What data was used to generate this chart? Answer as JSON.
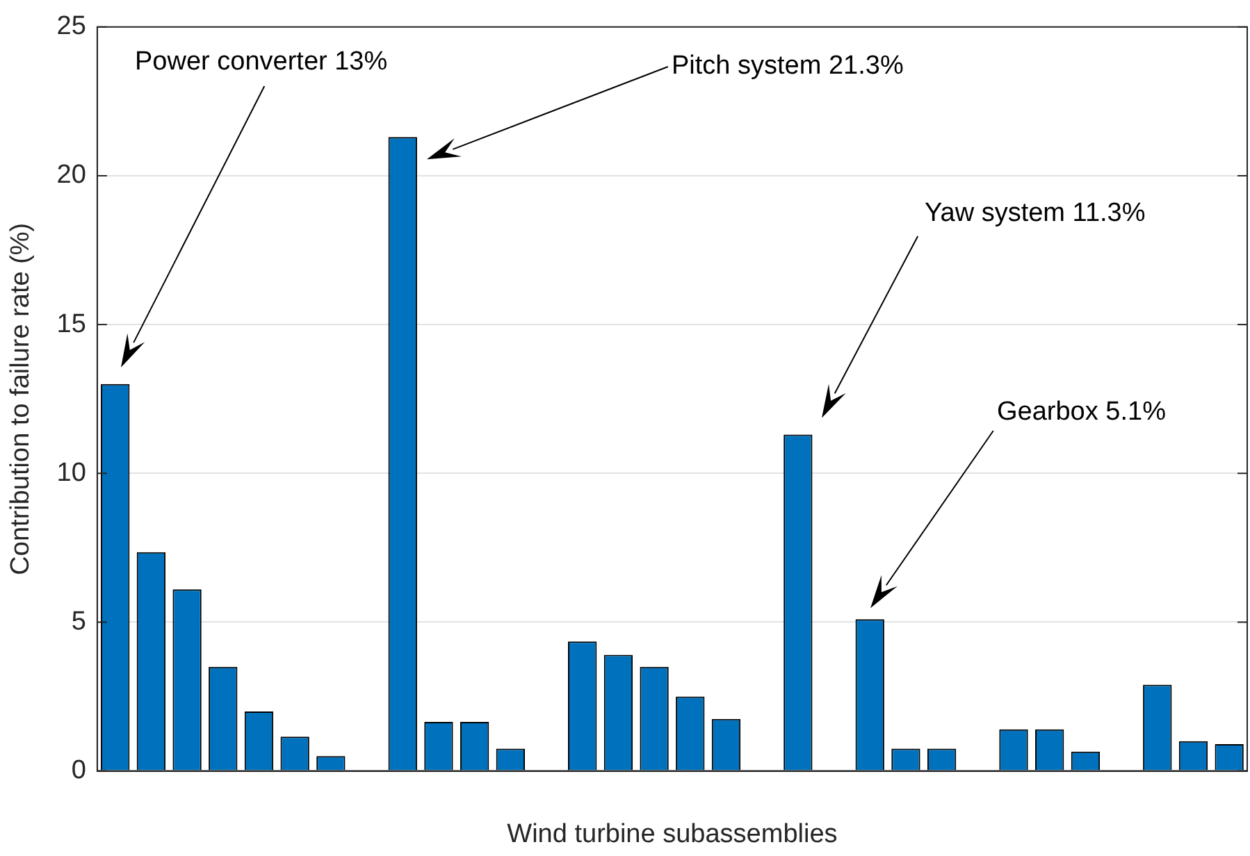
{
  "chart_data": {
    "type": "bar",
    "xlabel": "Wind turbine subassemblies",
    "ylabel": "Contribution to failure rate (%)",
    "categories": [
      null,
      null,
      null,
      null,
      null,
      null,
      null,
      null,
      null,
      null,
      null,
      null,
      null,
      null,
      null,
      null,
      null,
      null,
      null,
      null,
      null,
      null,
      null,
      null,
      null,
      null,
      null,
      null,
      null,
      null,
      null,
      null
    ],
    "values": [
      13,
      7.35,
      6.1,
      3.5,
      2,
      1.15,
      0.5,
      null,
      21.3,
      1.65,
      1.65,
      0.75,
      null,
      4.35,
      3.9,
      3.5,
      2.5,
      1.75,
      null,
      11.3,
      null,
      5.1,
      0.75,
      0.75,
      null,
      1.4,
      1.4,
      0.65,
      null,
      2.9,
      1,
      0.9
    ],
    "color": "#0072bd",
    "ylim": [
      0,
      25
    ],
    "yticks": [
      0,
      5,
      10,
      15,
      20,
      25
    ],
    "grid": "y",
    "legend": false,
    "annotations": [
      "Power converter 13%",
      "Pitch system 21.3%",
      "Yaw system 11.3%",
      "Gearbox 5.1%"
    ]
  }
}
